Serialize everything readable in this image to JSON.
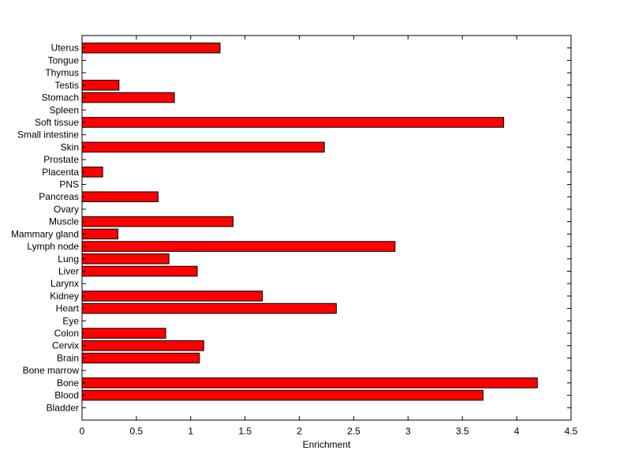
{
  "chart_data": {
    "type": "bar",
    "orientation": "horizontal",
    "title": "",
    "xlabel": "Enrichment",
    "ylabel": "",
    "xlim": [
      0,
      4.5
    ],
    "xticks": [
      "0",
      "0.5",
      "1",
      "1.5",
      "2",
      "2.5",
      "3",
      "3.5",
      "4",
      "4.5"
    ],
    "grid": false,
    "bar_color": "#ff0000",
    "categories": [
      "Bladder",
      "Blood",
      "Bone",
      "Bone marrow",
      "Brain",
      "Cervix",
      "Colon",
      "Eye",
      "Heart",
      "Kidney",
      "Larynx",
      "Liver",
      "Lung",
      "Lymph node",
      "Mammary gland",
      "Muscle",
      "Ovary",
      "Pancreas",
      "PNS",
      "Placenta",
      "Prostate",
      "Skin",
      "Small intestine",
      "Soft tissue",
      "Spleen",
      "Stomach",
      "Testis",
      "Thymus",
      "Tongue",
      "Uterus"
    ],
    "values": [
      0,
      3.69,
      4.19,
      0,
      1.08,
      1.12,
      0.77,
      0,
      2.34,
      1.66,
      0,
      1.06,
      0.8,
      2.88,
      0.33,
      1.39,
      0,
      0.7,
      0,
      0.19,
      0,
      2.23,
      0,
      3.88,
      0,
      0.85,
      0.34,
      0,
      0,
      1.27
    ]
  }
}
